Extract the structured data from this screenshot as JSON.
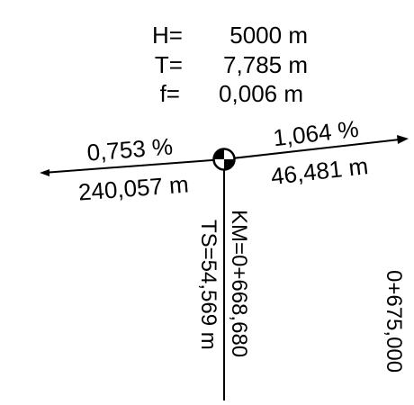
{
  "curve_params": {
    "H_label": "H=",
    "H_value": "5000 m",
    "T_label": "T=",
    "T_value": "7,785 m",
    "f_label": "f=",
    "f_value": "0,006 m"
  },
  "left_grade": {
    "percent": "0,753 %",
    "length": "240,057 m"
  },
  "right_grade": {
    "percent": "1,064 %",
    "length": "46,481 m"
  },
  "vertical_labels": {
    "ts": "TS=54,569 m",
    "km": "KM=0+668,680",
    "station": "0+675,000"
  },
  "colors": {
    "ink": "#000000",
    "background": "#ffffff"
  }
}
